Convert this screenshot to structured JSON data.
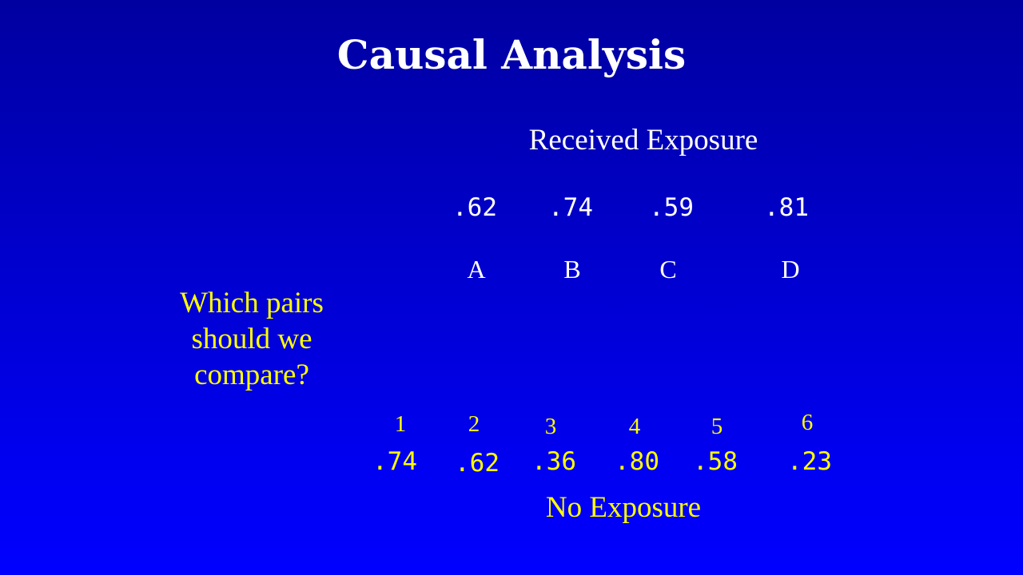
{
  "slide": {
    "title": "Causal Analysis",
    "exposed_heading": "Received Exposure",
    "unexposed_heading": "No Exposure",
    "question": "Which pairs\nshould we\ncompare?",
    "colors": {
      "background_top": "#0000a0",
      "background_bottom": "#0000ff",
      "exposed_text": "#ffffff",
      "unexposed_text": "#ffff00"
    }
  },
  "exposed": [
    {
      "label": "A",
      "score": ".62"
    },
    {
      "label": "B",
      "score": ".74"
    },
    {
      "label": "C",
      "score": ".59"
    },
    {
      "label": "D",
      "score": ".81"
    }
  ],
  "unexposed": [
    {
      "label": "1",
      "score": ".74"
    },
    {
      "label": "2",
      "score": ".62"
    },
    {
      "label": "3",
      "score": ".36"
    },
    {
      "label": "4",
      "score": ".80"
    },
    {
      "label": "5",
      "score": ".58"
    },
    {
      "label": "6",
      "score": ".23"
    }
  ]
}
